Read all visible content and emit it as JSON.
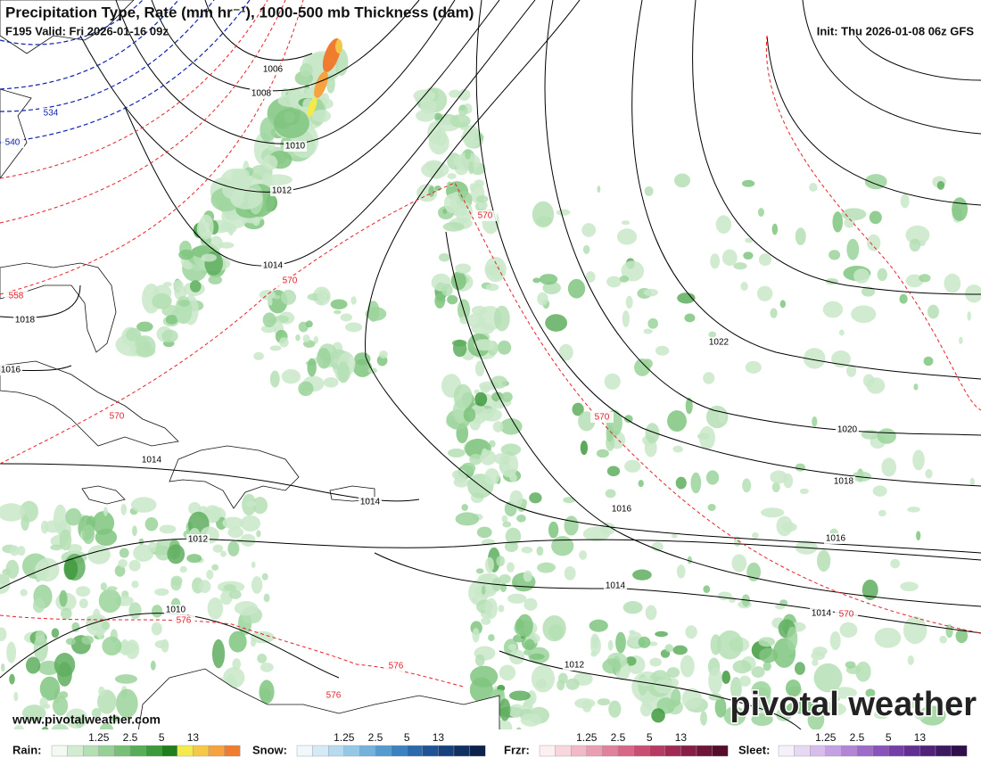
{
  "header": {
    "title": "Precipitation Type, Rate (mm hr⁻¹), 1000-500 mb Thickness (dam)",
    "valid": "F195 Valid: Fri 2026-01-16 09z",
    "init": "Init: Thu 2026-01-08 06z GFS"
  },
  "map": {
    "pressure_labels": [
      "1006",
      "1008",
      "1010",
      "1012",
      "1014",
      "1018",
      "1016",
      "1014",
      "1014",
      "1012",
      "1010",
      "1016",
      "1022",
      "1020",
      "1018",
      "1016",
      "1014",
      "1014",
      "1012"
    ],
    "cold_thickness_labels": [
      "534",
      "540"
    ],
    "thickness_labels": [
      "570",
      "570",
      "558",
      "570",
      "570",
      "576",
      "576",
      "576",
      "570"
    ],
    "website": "www.pivotalweather.com",
    "logo": "pivotal weather"
  },
  "legends": [
    {
      "name": "Rain:",
      "ticks": [
        "1.25",
        "2.5",
        "5",
        "13"
      ],
      "colors": [
        "#f2faf2",
        "#d2ecd2",
        "#b4dfb4",
        "#96d096",
        "#78c078",
        "#58ae58",
        "#3c9a3c",
        "#1f7f1f",
        "#f3ea4d",
        "#f6c847",
        "#f5a23f",
        "#f07c30"
      ]
    },
    {
      "name": "Snow:",
      "ticks": [
        "1.25",
        "2.5",
        "5",
        "13"
      ],
      "colors": [
        "#f0f8fc",
        "#d4ebf7",
        "#b6dbf0",
        "#95c8e7",
        "#73b2dc",
        "#539bd0",
        "#3a83c0",
        "#2a6aad",
        "#1e5495",
        "#17417c",
        "#113062",
        "#0c214b"
      ]
    },
    {
      "name": "Frzr:",
      "ticks": [
        "1.25",
        "2.5",
        "5",
        "13"
      ],
      "colors": [
        "#fcf0f3",
        "#f7d6de",
        "#f2bac8",
        "#eb9db2",
        "#e2819c",
        "#d76687",
        "#c84e73",
        "#b63a62",
        "#a02a53",
        "#881e45",
        "#6f1538",
        "#550d2b"
      ]
    },
    {
      "name": "Sleet:",
      "ticks": [
        "1.25",
        "2.5",
        "5",
        "13"
      ],
      "colors": [
        "#f6f0fb",
        "#e7d8f4",
        "#d6bdec",
        "#c4a1e2",
        "#b285d7",
        "#9f6bca",
        "#8a53bb",
        "#753fa8",
        "#622f92",
        "#50227a",
        "#3f1862",
        "#2f104b"
      ]
    }
  ]
}
